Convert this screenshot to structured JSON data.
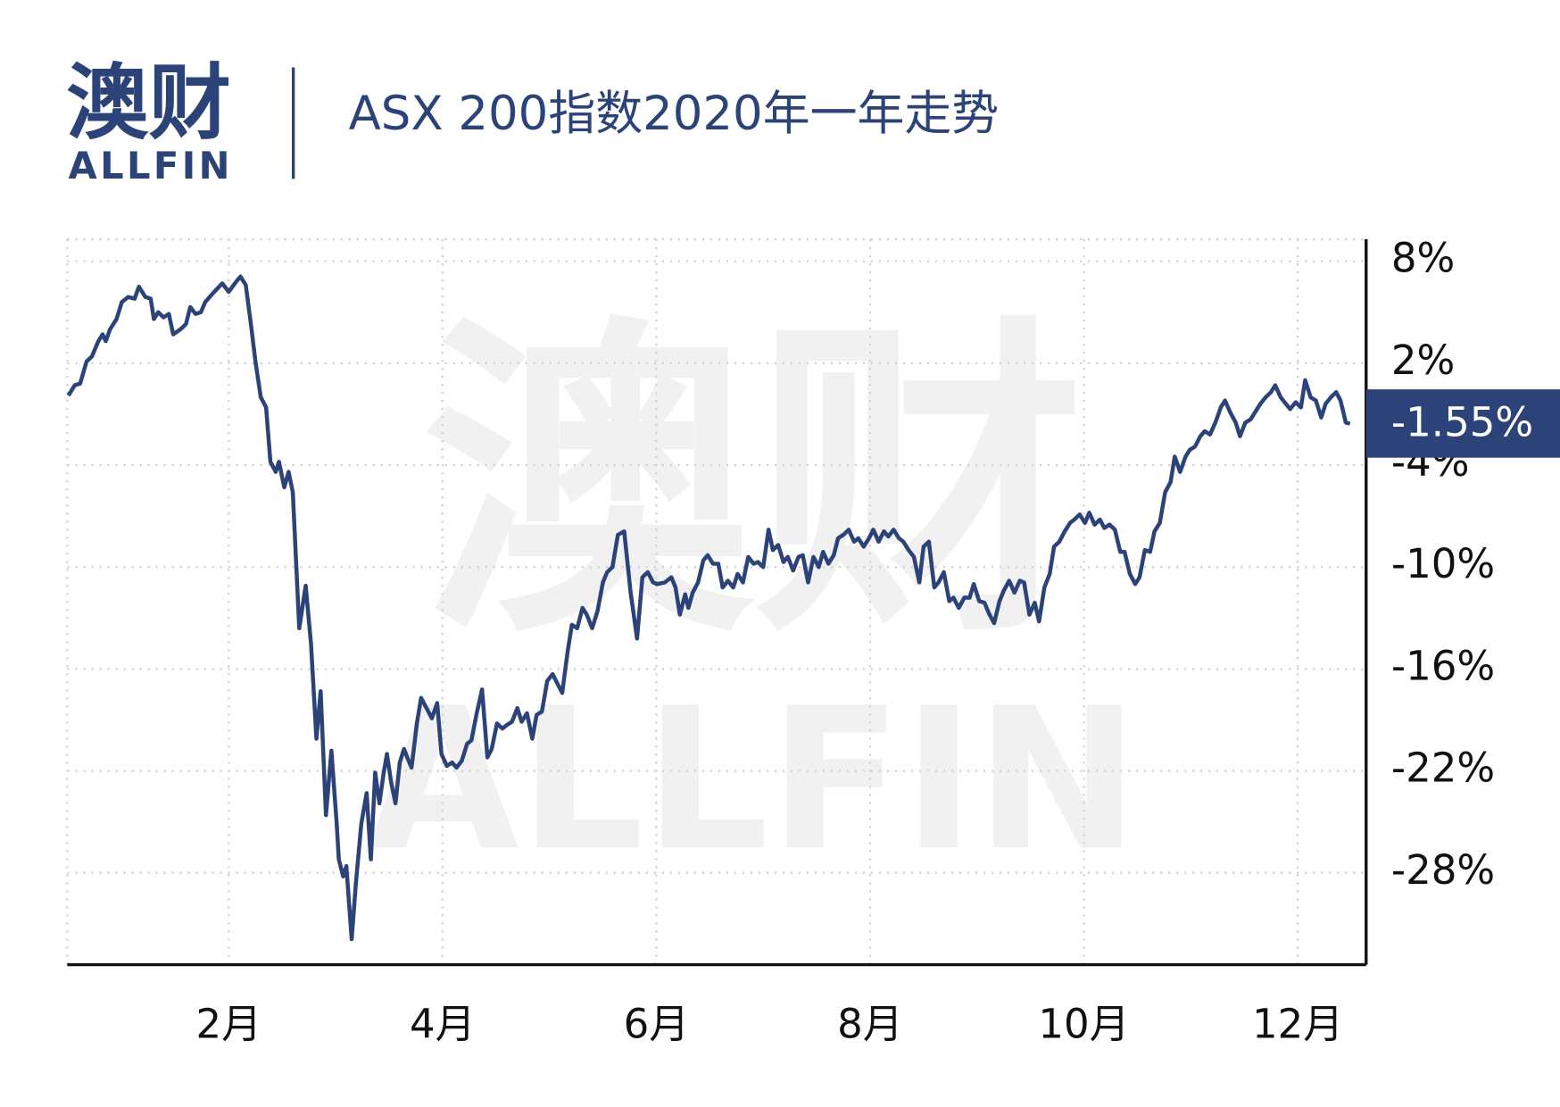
{
  "logo": {
    "name": "澳财",
    "brand": "ALLFIN"
  },
  "chart_data": {
    "type": "line",
    "title": "ASX 200指数2020年一年走势",
    "x": [
      0.5,
      0.56,
      0.61,
      0.67,
      0.72,
      0.78,
      0.82,
      0.85,
      0.89,
      0.95,
      1.0,
      1.06,
      1.12,
      1.16,
      1.22,
      1.27,
      1.3,
      1.34,
      1.39,
      1.44,
      1.48,
      1.55,
      1.6,
      1.64,
      1.69,
      1.74,
      1.78,
      1.85,
      1.91,
      1.94,
      2.0,
      2.07,
      2.11,
      2.16,
      2.21,
      2.25,
      2.3,
      2.35,
      2.39,
      2.44,
      2.47,
      2.52,
      2.56,
      2.6,
      2.66,
      2.72,
      2.77,
      2.82,
      2.86,
      2.91,
      2.96,
      3.01,
      3.03,
      3.07,
      3.1,
      3.15,
      3.19,
      3.24,
      3.29,
      3.33,
      3.37,
      3.41,
      3.45,
      3.48,
      3.52,
      3.56,
      3.6,
      3.64,
      3.67,
      3.71,
      3.76,
      3.8,
      3.85,
      3.9,
      3.95,
      3.99,
      4.04,
      4.09,
      4.13,
      4.18,
      4.23,
      4.27,
      4.32,
      4.37,
      4.42,
      4.46,
      4.51,
      4.56,
      4.6,
      4.65,
      4.7,
      4.74,
      4.79,
      4.84,
      4.88,
      4.93,
      4.98,
      5.03,
      5.07,
      5.12,
      5.17,
      5.21,
      5.26,
      5.31,
      5.35,
      5.4,
      5.45,
      5.5,
      5.54,
      5.59,
      5.64,
      5.7,
      5.76,
      5.82,
      5.87,
      5.92,
      5.97,
      6.01,
      6.08,
      6.14,
      6.18,
      6.22,
      6.27,
      6.3,
      6.34,
      6.39,
      6.44,
      6.48,
      6.53,
      6.58,
      6.62,
      6.67,
      6.72,
      6.76,
      6.81,
      6.86,
      6.91,
      6.95,
      7.0,
      7.05,
      7.09,
      7.14,
      7.19,
      7.23,
      7.28,
      7.33,
      7.37,
      7.42,
      7.47,
      7.52,
      7.56,
      7.61,
      7.66,
      7.7,
      7.75,
      7.8,
      7.85,
      7.89,
      7.94,
      7.99,
      8.03,
      8.08,
      8.13,
      8.17,
      8.22,
      8.27,
      8.31,
      8.36,
      8.41,
      8.46,
      8.5,
      8.55,
      8.6,
      8.64,
      8.69,
      8.74,
      8.78,
      8.83,
      8.88,
      8.93,
      8.97,
      9.02,
      9.07,
      9.11,
      9.16,
      9.21,
      9.25,
      9.3,
      9.35,
      9.4,
      9.44,
      9.49,
      9.54,
      9.58,
      9.63,
      9.68,
      9.72,
      9.77,
      9.82,
      9.87,
      9.91,
      9.96,
      10.01,
      10.05,
      10.1,
      10.15,
      10.19,
      10.24,
      10.29,
      10.34,
      10.38,
      10.43,
      10.48,
      10.52,
      10.57,
      10.62,
      10.66,
      10.71,
      10.76,
      10.81,
      10.85,
      10.9,
      10.95,
      10.99,
      11.04,
      11.09,
      11.13,
      11.18,
      11.23,
      11.28,
      11.32,
      11.37,
      11.42,
      11.46,
      11.51,
      11.56,
      11.6,
      11.65,
      11.7,
      11.75,
      11.79,
      11.84,
      11.89,
      11.93,
      11.98,
      12.03,
      12.07,
      12.12,
      12.17,
      12.22,
      12.26,
      12.31,
      12.36,
      12.4,
      12.45,
      12.49
    ],
    "series": [
      {
        "color": "#2b4378",
        "values": [
          0.1,
          0.7,
          0.8,
          2.1,
          2.4,
          3.3,
          3.7,
          3.3,
          4.0,
          4.6,
          5.6,
          5.9,
          5.8,
          6.5,
          5.9,
          5.8,
          4.6,
          5.0,
          4.7,
          4.9,
          3.7,
          4.0,
          4.3,
          5.3,
          4.9,
          5.0,
          5.6,
          6.1,
          6.5,
          6.7,
          6.2,
          6.8,
          7.1,
          6.6,
          4.2,
          2.1,
          0.0,
          -0.6,
          -3.8,
          -4.4,
          -3.8,
          -5.3,
          -4.4,
          -5.6,
          -13.6,
          -11.1,
          -14.5,
          -20.1,
          -17.3,
          -24.6,
          -20.8,
          -25.1,
          -27.2,
          -28.2,
          -27.6,
          -31.9,
          -28.6,
          -25.1,
          -23.3,
          -27.2,
          -22.1,
          -23.9,
          -22.1,
          -21.0,
          -22.7,
          -23.9,
          -21.5,
          -20.7,
          -21.2,
          -21.8,
          -19.2,
          -17.7,
          -18.3,
          -18.9,
          -18.0,
          -21.0,
          -21.7,
          -21.5,
          -21.8,
          -21.4,
          -20.4,
          -20.2,
          -18.6,
          -17.2,
          -21.2,
          -20.7,
          -19.2,
          -19.5,
          -19.3,
          -19.1,
          -18.3,
          -19.1,
          -18.6,
          -20.1,
          -18.7,
          -18.5,
          -16.7,
          -16.3,
          -16.8,
          -17.4,
          -15.0,
          -13.4,
          -13.6,
          -12.4,
          -12.8,
          -13.6,
          -12.6,
          -10.9,
          -10.3,
          -10.0,
          -8.1,
          -7.9,
          -11.5,
          -14.2,
          -10.6,
          -10.3,
          -10.9,
          -11.0,
          -10.9,
          -10.6,
          -11.2,
          -12.8,
          -11.6,
          -12.4,
          -11.5,
          -10.9,
          -9.6,
          -9.3,
          -9.8,
          -9.8,
          -11.2,
          -10.8,
          -11.2,
          -10.4,
          -10.9,
          -9.4,
          -9.8,
          -9.7,
          -10.0,
          -7.8,
          -9.0,
          -8.7,
          -9.7,
          -9.4,
          -10.2,
          -9.4,
          -9.3,
          -10.9,
          -9.4,
          -10.0,
          -9.1,
          -9.8,
          -9.3,
          -8.3,
          -8.1,
          -7.8,
          -8.5,
          -8.3,
          -8.8,
          -8.3,
          -7.8,
          -8.5,
          -7.9,
          -8.2,
          -7.8,
          -8.3,
          -8.5,
          -9.0,
          -9.4,
          -10.9,
          -8.8,
          -8.5,
          -11.2,
          -10.9,
          -10.3,
          -12.0,
          -11.8,
          -12.4,
          -11.8,
          -11.8,
          -11.0,
          -12.0,
          -12.1,
          -12.7,
          -13.3,
          -12.0,
          -11.4,
          -10.8,
          -11.5,
          -10.8,
          -10.9,
          -12.8,
          -12.1,
          -13.2,
          -11.2,
          -10.4,
          -8.8,
          -8.5,
          -7.9,
          -7.4,
          -7.2,
          -6.9,
          -7.4,
          -6.8,
          -7.5,
          -7.2,
          -7.7,
          -7.5,
          -7.8,
          -9.1,
          -9.1,
          -10.4,
          -11.0,
          -10.6,
          -9.0,
          -9.1,
          -7.9,
          -7.4,
          -5.6,
          -5.0,
          -3.5,
          -4.4,
          -3.5,
          -3.1,
          -2.9,
          -2.3,
          -2.0,
          -2.2,
          -1.5,
          -0.6,
          -0.2,
          -0.9,
          -1.5,
          -2.3,
          -1.5,
          -1.3,
          -0.9,
          -0.4,
          0.0,
          0.3,
          0.7,
          0.0,
          -0.4,
          -0.7,
          -0.3,
          -0.6,
          1.0,
          0.0,
          -0.2,
          -1.2,
          -0.4,
          0.0,
          0.3,
          -0.2,
          -1.5,
          -1.55
        ]
      }
    ],
    "annotations": [
      {
        "value": -1.55,
        "label": "-1.55%"
      }
    ],
    "xlim": [
      0.49,
      12.64
    ],
    "xticks": [
      {
        "value": 2,
        "label": "2月"
      },
      {
        "value": 4,
        "label": "4月"
      },
      {
        "value": 6,
        "label": "6月"
      },
      {
        "value": 8,
        "label": "8月"
      },
      {
        "value": 10,
        "label": "10月"
      },
      {
        "value": 12,
        "label": "12月"
      }
    ],
    "ylim": [
      -33.4,
      9.3
    ],
    "yticks": [
      {
        "value": 8,
        "label": "8%"
      },
      {
        "value": 2,
        "label": "2%"
      },
      {
        "value": -4,
        "label": "-4%"
      },
      {
        "value": -10,
        "label": "-10%"
      },
      {
        "value": -16,
        "label": "-16%"
      },
      {
        "value": -22,
        "label": "-22%"
      },
      {
        "value": -28,
        "label": "-28%"
      }
    ],
    "yaxis_side": "right",
    "grid": true
  }
}
